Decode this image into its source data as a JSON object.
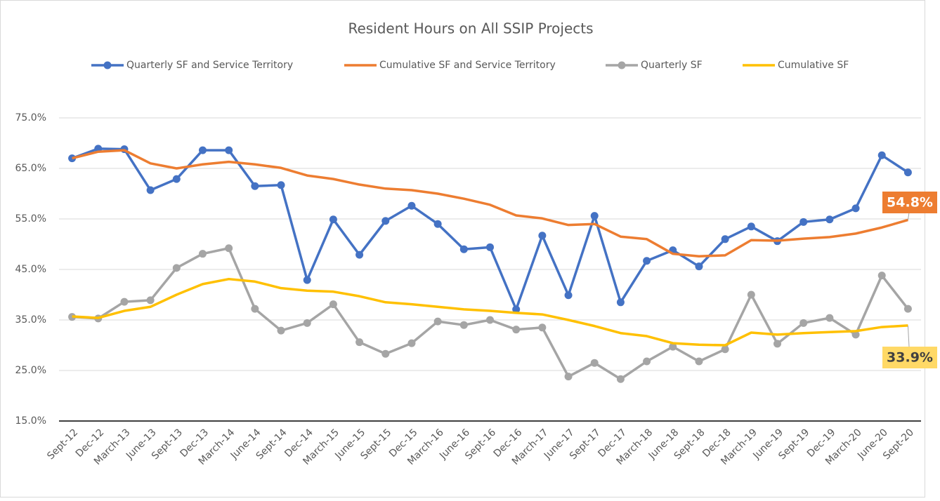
{
  "chart_data": {
    "type": "line",
    "title": "Resident Hours on All SSIP Projects",
    "categories": [
      "Sept-12",
      "Dec-12",
      "March-13",
      "June-13",
      "Sept-13",
      "Dec-13",
      "March-14",
      "June-14",
      "Sept-14",
      "Dec-14",
      "March-15",
      "June-15",
      "Sept-15",
      "Dec-15",
      "March-16",
      "June-16",
      "Sept-16",
      "Dec-16",
      "March-17",
      "June-17",
      "Sept-17",
      "Dec-17",
      "March-18",
      "June-18",
      "Sept-18",
      "Dec-18",
      "March-19",
      "June-19",
      "Sept-19",
      "Dec-19",
      "March-20",
      "June-20",
      "Sept-20"
    ],
    "series": [
      {
        "name": "Quarterly SF and Service Territory",
        "color": "#4472c4",
        "markers": true,
        "values": [
          67.0,
          68.9,
          68.8,
          60.7,
          62.9,
          68.6,
          68.6,
          61.5,
          61.7,
          42.9,
          54.9,
          47.9,
          54.6,
          57.6,
          54.0,
          49.0,
          49.4,
          37.1,
          51.7,
          39.9,
          55.6,
          38.5,
          46.7,
          48.8,
          45.6,
          51.0,
          53.5,
          50.6,
          54.4,
          54.9,
          57.1,
          67.6,
          64.2
        ]
      },
      {
        "name": "Cumulative SF and Service Territory",
        "color": "#ed7d31",
        "markers": false,
        "values": [
          67.0,
          68.3,
          68.6,
          66.0,
          65.0,
          65.8,
          66.3,
          65.8,
          65.1,
          63.6,
          62.9,
          61.8,
          61.0,
          60.7,
          60.0,
          59.0,
          57.8,
          55.7,
          55.1,
          53.8,
          54.0,
          51.5,
          51.0,
          48.1,
          47.6,
          47.8,
          50.8,
          50.7,
          51.1,
          51.4,
          52.1,
          53.3,
          54.8
        ],
        "value_labels": [
          null,
          null,
          null,
          null,
          null,
          null,
          null,
          null,
          null,
          null,
          null,
          null,
          null,
          null,
          null,
          null,
          null,
          null,
          null,
          null,
          null,
          null,
          null,
          null,
          null,
          null,
          null,
          null,
          null,
          null,
          null,
          null,
          "54.8%"
        ]
      },
      {
        "name": "Quarterly SF",
        "color": "#a5a5a5",
        "markers": true,
        "values": [
          35.6,
          35.3,
          38.6,
          38.9,
          45.3,
          48.1,
          49.2,
          37.2,
          32.9,
          34.4,
          38.1,
          30.6,
          28.3,
          30.4,
          34.7,
          34.0,
          35.0,
          33.1,
          33.5,
          23.8,
          26.5,
          23.3,
          26.8,
          29.7,
          26.8,
          29.2,
          40.0,
          30.3,
          34.4,
          35.4,
          32.1,
          43.8,
          37.2
        ]
      },
      {
        "name": "Cumulative SF",
        "color": "#ffc000",
        "markers": false,
        "values": [
          35.7,
          35.4,
          36.8,
          37.6,
          40.0,
          42.1,
          43.1,
          42.6,
          41.3,
          40.8,
          40.6,
          39.7,
          38.5,
          38.1,
          37.6,
          37.1,
          36.8,
          36.4,
          36.1,
          35.0,
          33.8,
          32.4,
          31.8,
          30.4,
          30.1,
          30.0,
          32.5,
          32.1,
          32.4,
          32.6,
          32.8,
          33.6,
          33.9
        ],
        "value_labels": [
          null,
          null,
          null,
          null,
          null,
          null,
          null,
          null,
          null,
          null,
          null,
          null,
          null,
          null,
          null,
          null,
          null,
          null,
          null,
          null,
          null,
          null,
          null,
          null,
          null,
          null,
          null,
          null,
          null,
          null,
          null,
          null,
          "33.9%"
        ]
      }
    ],
    "ylim": [
      15,
      75
    ],
    "yticks": [
      {
        "value": 15,
        "label": "15.0%"
      },
      {
        "value": 25,
        "label": "25.0%"
      },
      {
        "value": 35,
        "label": "35.0%"
      },
      {
        "value": 45,
        "label": "45.0%"
      },
      {
        "value": 55,
        "label": "55.0%"
      },
      {
        "value": 65,
        "label": "65.0%"
      },
      {
        "value": 75,
        "label": "75.0%"
      }
    ],
    "grid": true
  }
}
